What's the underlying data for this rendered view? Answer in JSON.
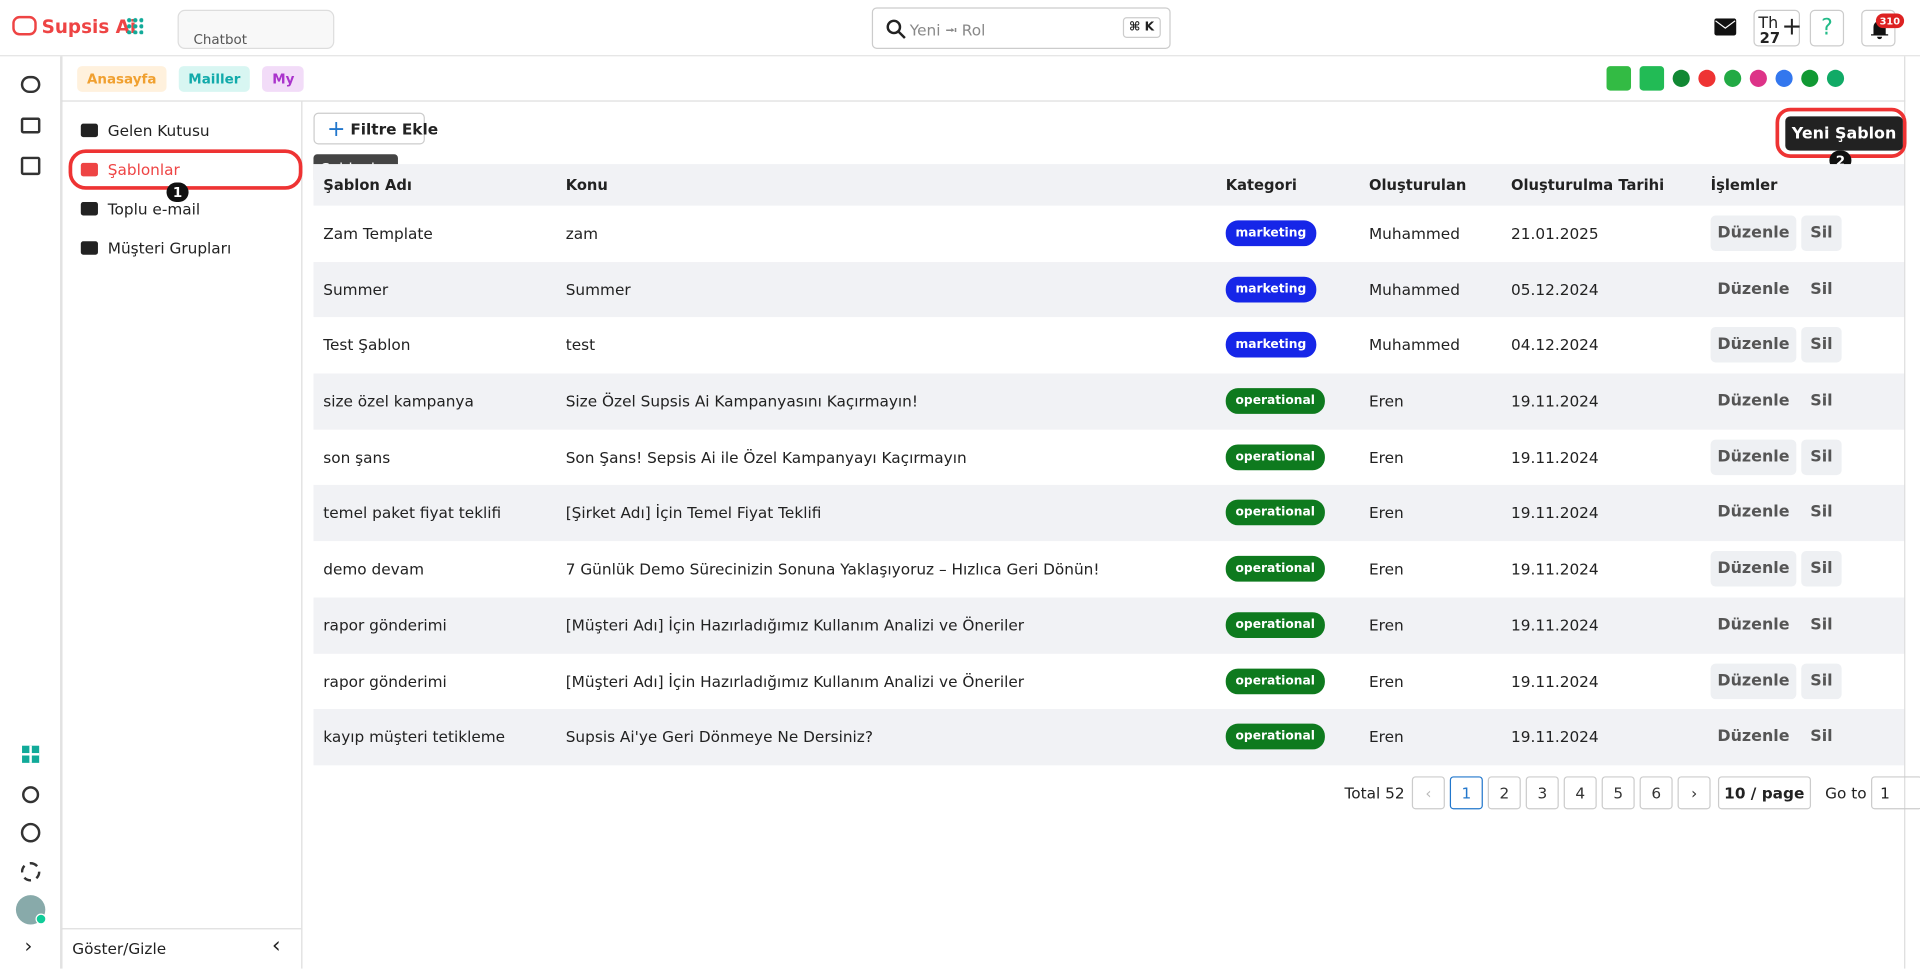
{
  "app": {
    "name": "Supsis Ai",
    "tab": "Chatbot",
    "search": "Yeni ⭲ Rol",
    "shortcut": "⌘ K",
    "date_day": "Th",
    "date_num": "27",
    "notifications": "310"
  },
  "tabs": [
    "Anasayfa",
    "Mailler",
    "My"
  ],
  "sidebar": {
    "items": [
      "Gelen Kutusu",
      "Şablonlar",
      "Toplu e-mail",
      "Müşteri Grupları"
    ],
    "tooltip": "Şablonlar",
    "toggle": "Göster/Gizle"
  },
  "annotations": [
    "1",
    "2"
  ],
  "toolbar": {
    "filter": "Filtre Ekle",
    "new": "Yeni Şablon"
  },
  "table": {
    "headers": [
      "Şablon Adı",
      "Konu",
      "Kategori",
      "Oluşturulan",
      "Oluşturulma Tarihi",
      "İşlemler"
    ],
    "rows": [
      [
        "Zam Template",
        "zam",
        "marketing",
        "Muhammed",
        "21.01.2025"
      ],
      [
        "Summer",
        "Summer",
        "marketing",
        "Muhammed",
        "05.12.2024"
      ],
      [
        "Test Şablon",
        "test",
        "marketing",
        "Muhammed",
        "04.12.2024"
      ],
      [
        "size özel kampanya",
        "Size Özel Supsis Ai Kampanyasını Kaçırmayın!",
        "operational",
        "Eren",
        "19.11.2024"
      ],
      [
        "son şans",
        "Son Şans! Sepsis Ai ile Özel Kampanyayı Kaçırmayın",
        "operational",
        "Eren",
        "19.11.2024"
      ],
      [
        "temel paket fiyat teklifi",
        "[Şirket Adı] İçin Temel Fiyat Teklifi",
        "operational",
        "Eren",
        "19.11.2024"
      ],
      [
        "demo devam",
        "7 Günlük Demo Sürecinizin Sonuna Yaklaşıyoruz – Hızlıca Geri Dönün!",
        "operational",
        "Eren",
        "19.11.2024"
      ],
      [
        "rapor gönderimi",
        "[Müşteri Adı] İçin Hazırladığımız Kullanım Analizi ve Öneriler",
        "operational",
        "Eren",
        "19.11.2024"
      ],
      [
        "rapor gönderimi",
        "[Müşteri Adı] İçin Hazırladığımız Kullanım Analizi ve Öneriler",
        "operational",
        "Eren",
        "19.11.2024"
      ],
      [
        "kayıp müşteri tetikleme",
        "Supsis Ai'ye Geri Dönmeye Ne Dersiniz?",
        "operational",
        "Eren",
        "19.11.2024"
      ]
    ],
    "actions": [
      "Düzenle",
      "Sil"
    ]
  },
  "pagination": {
    "total": "Total 52",
    "pages": [
      "1",
      "2",
      "3",
      "4",
      "5",
      "6"
    ],
    "size": "10 / page",
    "goto": "Go to",
    "goto_value": "1"
  }
}
